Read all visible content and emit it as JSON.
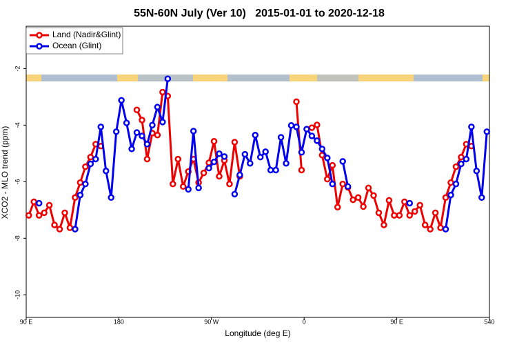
{
  "chart_data": {
    "type": "line",
    "title": "55N-60N July (Ver 10)   2015-01-01 to 2020-12-18",
    "x_label": "Longitude (deg E)",
    "y_label": "XCO2 - MLO trend (ppm)",
    "xlim": [
      90,
      540
    ],
    "ylim": [
      -10.8,
      -0.5
    ],
    "xticks": [
      {
        "value": 90,
        "label": "90 E"
      },
      180,
      {
        "value": 270,
        "label": "90 W"
      },
      {
        "value": 360,
        "label": "0"
      },
      {
        "value": 450,
        "label": "90 E"
      },
      540
    ],
    "yticks": [
      -2,
      -4,
      -6,
      -8,
      -10
    ],
    "legend": "top-left",
    "x": [
      92.5,
      97.5,
      102.5,
      107.5,
      112.5,
      117.5,
      122.5,
      127.5,
      132.5,
      137.5,
      142.5,
      147.5,
      152.5,
      157.5,
      162.5,
      167.5,
      172.5,
      177.5,
      182.5,
      187.5,
      192.5,
      197.5,
      202.5,
      207.5,
      212.5,
      217.5,
      222.5,
      227.5,
      232.5,
      237.5,
      242.5,
      247.5,
      252.5,
      257.5,
      262.5,
      267.5,
      272.5,
      277.5,
      282.5,
      287.5,
      292.5,
      297.5,
      302.5,
      307.5,
      312.5,
      317.5,
      322.5,
      327.5,
      332.5,
      337.5,
      342.5,
      347.5,
      352.5,
      357.5,
      362.5,
      367.5,
      372.5,
      377.5,
      382.5,
      387.5,
      392.5,
      397.5,
      402.5,
      407.5,
      412.5,
      417.5,
      422.5,
      427.5,
      432.5,
      437.5,
      442.5,
      447.5,
      452.5,
      457.5,
      462.5,
      467.5,
      472.5,
      477.5,
      482.5,
      487.5,
      492.5,
      497.5,
      502.5,
      507.5,
      512.5,
      517.5,
      522.5,
      527.5,
      532.5,
      537.5
    ],
    "series": [
      {
        "name": "Land (Nadir&Glint)",
        "color": "#ee0000",
        "values": [
          -7.19,
          -6.71,
          -7.19,
          -7.1,
          -6.83,
          -7.53,
          -7.68,
          -7.1,
          -7.63,
          -6.56,
          -6.03,
          -5.47,
          -5.13,
          -4.67,
          -4.74,
          null,
          null,
          null,
          null,
          null,
          null,
          -3.46,
          -3.82,
          -5.2,
          -4.28,
          -4.35,
          -2.83,
          -2.97,
          -6.08,
          -5.2,
          -6.17,
          -5.64,
          -5.2,
          -6.03,
          -5.69,
          -5.33,
          -4.57,
          -5.81,
          -5.25,
          -6.08,
          -4.6,
          -5.81,
          null,
          null,
          null,
          null,
          null,
          null,
          null,
          null,
          null,
          null,
          -3.17,
          -5.59,
          null,
          -4.09,
          -3.99,
          -5.06,
          -5.91,
          -5.42,
          -6.9,
          -6.08,
          -6.2,
          -6.64,
          -6.56,
          -6.88,
          -6.22,
          -6.49,
          -7.1,
          -7.53,
          -6.66,
          -7.19,
          -7.19,
          -6.71,
          -7.19,
          -7.05,
          -6.83,
          -7.53,
          -7.68,
          -7.1,
          -7.63,
          -6.56,
          -6.03,
          -5.47,
          -5.13,
          -4.67,
          -4.74,
          null,
          null,
          null
        ]
      },
      {
        "name": "Ocean (Glint)",
        "color": "#0000ee",
        "values": [
          null,
          null,
          -6.76,
          null,
          null,
          null,
          null,
          null,
          null,
          -7.68,
          -6.47,
          -6.08,
          -5.37,
          -5.2,
          -4.06,
          -5.62,
          -6.56,
          -4.23,
          -3.12,
          -3.92,
          -4.84,
          -4.26,
          -4.38,
          -4.67,
          -4.0,
          -3.36,
          -3.89,
          -2.36,
          null,
          null,
          null,
          -6.27,
          -4.21,
          -6.22,
          null,
          -5.52,
          -5.3,
          -5.01,
          -5.11,
          null,
          -6.44,
          -5.76,
          -5.03,
          -5.35,
          -4.35,
          -5.13,
          -4.94,
          -5.59,
          -5.59,
          -4.43,
          -5.35,
          -4.01,
          -4.06,
          -4.96,
          -4.14,
          -4.38,
          -4.55,
          -4.84,
          -5.16,
          -6.08,
          null,
          -5.28,
          -6.17,
          null,
          null,
          null,
          null,
          null,
          null,
          null,
          null,
          null,
          null,
          null,
          -6.76,
          null,
          null,
          null,
          null,
          null,
          null,
          -7.68,
          -6.47,
          -6.08,
          -5.37,
          -5.2,
          -4.06,
          -5.62,
          -6.56,
          -4.23
        ]
      }
    ]
  }
}
